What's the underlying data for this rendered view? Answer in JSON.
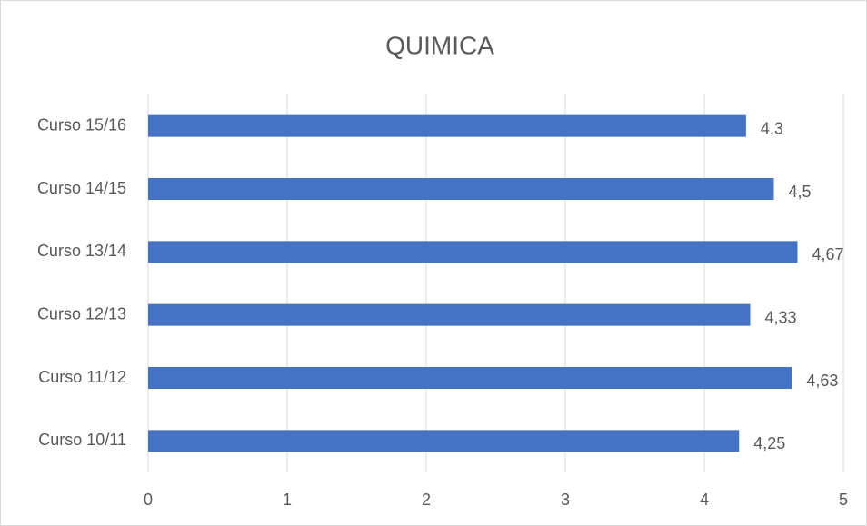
{
  "chart_data": {
    "type": "barh",
    "title": "QUIMICA",
    "categories": [
      "Curso 15/16",
      "Curso 14/15",
      "Curso 13/14",
      "Curso 12/13",
      "Curso 11/12",
      "Curso 10/11"
    ],
    "values": [
      4.3,
      4.5,
      4.67,
      4.33,
      4.63,
      4.25
    ],
    "value_labels": [
      "4,3",
      "4,5",
      "4,67",
      "4,33",
      "4,63",
      "4,25"
    ],
    "color": "#4472c4",
    "xlim": [
      0,
      5
    ],
    "xticks": [
      0,
      1,
      2,
      3,
      4,
      5
    ],
    "grid": true
  }
}
